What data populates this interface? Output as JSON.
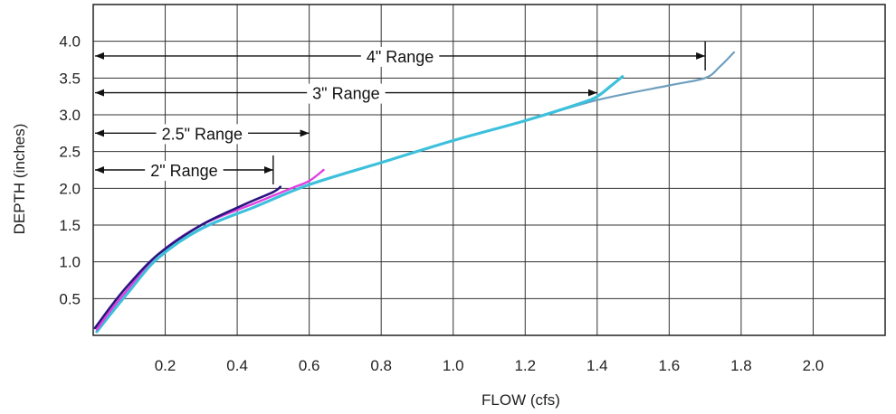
{
  "chart_data": {
    "type": "line",
    "xlabel": "FLOW (cfs)",
    "ylabel": "DEPTH (inches)",
    "xlim": [
      0,
      2.2
    ],
    "ylim": [
      0,
      4.5
    ],
    "grid": true,
    "x_ticks": [
      0.2,
      0.4,
      0.6,
      0.8,
      1.0,
      1.2,
      1.4,
      1.6,
      1.8,
      2.0
    ],
    "x_tick_labels": [
      "0.2",
      "0.4",
      "0.6",
      "0.8",
      "1.0",
      "1.2",
      "1.4",
      "1.6",
      "1.8",
      "2.0"
    ],
    "y_ticks": [
      0.5,
      1.0,
      1.5,
      2.0,
      2.5,
      3.0,
      3.5,
      4.0
    ],
    "y_tick_labels": [
      "0.5",
      "1.0",
      "1.5",
      "2.0",
      "2.5",
      "3.0",
      "3.5",
      "4.0"
    ],
    "series": [
      {
        "color": "#6f9fbe",
        "points": [
          [
            0.01,
            0.05
          ],
          [
            0.05,
            0.3
          ],
          [
            0.1,
            0.6
          ],
          [
            0.18,
            1.05
          ],
          [
            0.3,
            1.45
          ],
          [
            0.45,
            1.75
          ],
          [
            0.6,
            2.05
          ],
          [
            0.8,
            2.35
          ],
          [
            1.0,
            2.65
          ],
          [
            1.2,
            2.92
          ],
          [
            1.4,
            3.2
          ],
          [
            1.6,
            3.4
          ],
          [
            1.7,
            3.5
          ],
          [
            1.74,
            3.65
          ],
          [
            1.78,
            3.85
          ]
        ]
      },
      {
        "color": "#3cc0dc",
        "points": [
          [
            0.01,
            0.05
          ],
          [
            0.05,
            0.3
          ],
          [
            0.1,
            0.6
          ],
          [
            0.18,
            1.05
          ],
          [
            0.3,
            1.45
          ],
          [
            0.45,
            1.75
          ],
          [
            0.6,
            2.05
          ],
          [
            0.8,
            2.35
          ],
          [
            1.0,
            2.65
          ],
          [
            1.2,
            2.92
          ],
          [
            1.35,
            3.15
          ],
          [
            1.4,
            3.25
          ],
          [
            1.44,
            3.4
          ],
          [
            1.47,
            3.52
          ]
        ]
      },
      {
        "color": "#e040e0",
        "points": [
          [
            0.01,
            0.08
          ],
          [
            0.05,
            0.35
          ],
          [
            0.1,
            0.65
          ],
          [
            0.18,
            1.1
          ],
          [
            0.3,
            1.5
          ],
          [
            0.45,
            1.8
          ],
          [
            0.55,
            2.0
          ],
          [
            0.6,
            2.1
          ],
          [
            0.64,
            2.25
          ]
        ]
      },
      {
        "color": "#2a1580",
        "points": [
          [
            0.005,
            0.1
          ],
          [
            0.05,
            0.4
          ],
          [
            0.1,
            0.7
          ],
          [
            0.18,
            1.1
          ],
          [
            0.3,
            1.5
          ],
          [
            0.42,
            1.78
          ],
          [
            0.5,
            1.95
          ],
          [
            0.52,
            2.02
          ]
        ]
      }
    ],
    "annotations": [
      {
        "text": "4\" Range",
        "x_start": 0,
        "x_end": 1.7,
        "y": 3.8,
        "end_tick": true
      },
      {
        "text": "3\" Range",
        "x_start": 0,
        "x_end": 1.4,
        "y": 3.3,
        "end_tick": false
      },
      {
        "text": "2.5\" Range",
        "x_start": 0,
        "x_end": 0.6,
        "y": 2.75,
        "end_tick": false
      },
      {
        "text": "2\" Range",
        "x_start": 0,
        "x_end": 0.5,
        "y": 2.25,
        "end_tick": true
      }
    ]
  }
}
